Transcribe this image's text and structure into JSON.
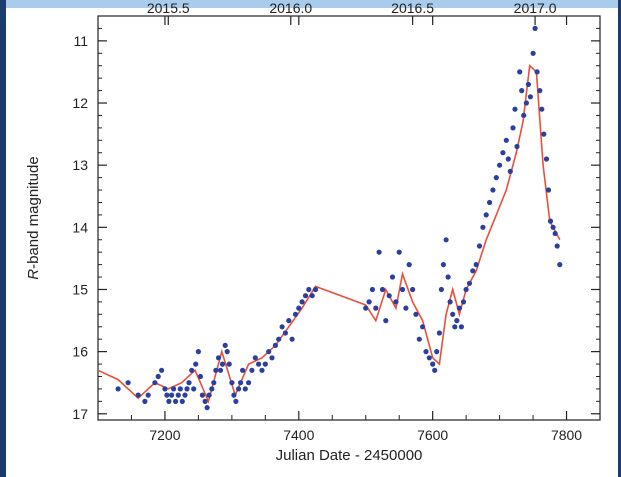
{
  "chart_data": {
    "type": "scatter",
    "title": "",
    "xlabel": "Julian Date - 2450000",
    "ylabel_italic": "R",
    "ylabel_rest": "-band magnitude",
    "xlim": [
      7100,
      7850
    ],
    "ylim": [
      17.1,
      10.6
    ],
    "y_inverted": true,
    "x_ticks": [
      7200,
      7400,
      7600,
      7800
    ],
    "y_ticks": [
      11,
      12,
      13,
      14,
      15,
      16,
      17
    ],
    "x_tick_labels": [
      "7200",
      "7400",
      "7600",
      "7800"
    ],
    "y_tick_labels": [
      "11",
      "12",
      "13",
      "14",
      "15",
      "16",
      "17"
    ],
    "top_axis_ticks": [
      7205,
      7388,
      7570,
      7753
    ],
    "top_axis_labels": [
      "2015.5",
      "2016.0",
      "2016.5",
      "2017.0"
    ],
    "grid": false,
    "legend": "none",
    "series": [
      {
        "style": "points",
        "color": "#2b3f9e",
        "x": [
          7130,
          7145,
          7160,
          7170,
          7175,
          7185,
          7190,
          7195,
          7200,
          7203,
          7206,
          7210,
          7213,
          7216,
          7220,
          7223,
          7226,
          7230,
          7233,
          7236,
          7240,
          7243,
          7246,
          7250,
          7253,
          7256,
          7260,
          7263,
          7266,
          7270,
          7273,
          7276,
          7280,
          7283,
          7286,
          7290,
          7293,
          7296,
          7300,
          7303,
          7306,
          7310,
          7313,
          7316,
          7320,
          7325,
          7330,
          7335,
          7340,
          7345,
          7350,
          7355,
          7360,
          7365,
          7370,
          7375,
          7380,
          7385,
          7390,
          7395,
          7400,
          7405,
          7410,
          7415,
          7420,
          7425,
          7500,
          7505,
          7510,
          7515,
          7520,
          7525,
          7530,
          7535,
          7540,
          7545,
          7550,
          7555,
          7560,
          7565,
          7570,
          7575,
          7580,
          7585,
          7590,
          7595,
          7600,
          7603,
          7606,
          7610,
          7613,
          7616,
          7620,
          7623,
          7626,
          7630,
          7633,
          7636,
          7640,
          7643,
          7646,
          7650,
          7655,
          7660,
          7665,
          7670,
          7675,
          7680,
          7685,
          7690,
          7695,
          7700,
          7705,
          7710,
          7713,
          7716,
          7720,
          7723,
          7726,
          7730,
          7733,
          7736,
          7740,
          7743,
          7746,
          7750,
          7753,
          7756,
          7760,
          7763,
          7766,
          7770,
          7773,
          7776,
          7780,
          7783,
          7786,
          7790
        ],
        "y": [
          16.6,
          16.5,
          16.7,
          16.8,
          16.7,
          16.5,
          16.4,
          16.3,
          16.6,
          16.7,
          16.8,
          16.7,
          16.6,
          16.8,
          16.7,
          16.6,
          16.8,
          16.7,
          16.6,
          16.5,
          16.3,
          16.6,
          16.2,
          16.0,
          16.4,
          16.7,
          16.8,
          16.9,
          16.7,
          16.6,
          16.5,
          16.3,
          16.1,
          16.3,
          16.2,
          15.9,
          16.0,
          16.2,
          16.5,
          16.7,
          16.8,
          16.6,
          16.5,
          16.3,
          16.6,
          16.5,
          16.3,
          16.1,
          16.2,
          16.3,
          16.2,
          16.0,
          16.1,
          15.9,
          15.8,
          15.6,
          15.7,
          15.5,
          15.8,
          15.4,
          15.3,
          15.2,
          15.1,
          15.0,
          15.1,
          15.0,
          15.3,
          15.2,
          15.0,
          15.3,
          14.4,
          15.0,
          15.5,
          15.1,
          14.8,
          15.2,
          14.4,
          15.0,
          15.3,
          14.6,
          15.0,
          15.4,
          15.8,
          15.6,
          16.0,
          16.1,
          16.2,
          16.3,
          16.0,
          15.7,
          15.0,
          14.6,
          14.2,
          14.8,
          15.2,
          15.4,
          15.6,
          15.5,
          15.3,
          15.6,
          15.2,
          15.0,
          14.9,
          14.7,
          14.6,
          14.3,
          14.0,
          13.8,
          13.6,
          13.4,
          13.2,
          13.0,
          12.8,
          12.6,
          12.9,
          13.1,
          12.4,
          12.1,
          12.7,
          11.5,
          11.8,
          12.2,
          12.0,
          11.7,
          11.9,
          11.2,
          10.8,
          11.5,
          11.8,
          12.1,
          12.5,
          12.9,
          13.4,
          13.9,
          14.0,
          14.1,
          14.3,
          14.6
        ]
      },
      {
        "style": "line",
        "color": "#e8503a",
        "x": [
          7100,
          7130,
          7160,
          7185,
          7205,
          7225,
          7245,
          7265,
          7285,
          7305,
          7325,
          7345,
          7365,
          7385,
          7405,
          7425,
          7450,
          7475,
          7500,
          7515,
          7530,
          7545,
          7555,
          7570,
          7585,
          7600,
          7610,
          7620,
          7630,
          7640,
          7650,
          7665,
          7680,
          7695,
          7710,
          7725,
          7735,
          7745,
          7755,
          7765,
          7775,
          7790
        ],
        "y": [
          16.3,
          16.45,
          16.75,
          16.5,
          16.6,
          16.5,
          16.3,
          16.8,
          16.0,
          16.7,
          16.2,
          16.1,
          15.9,
          15.6,
          15.3,
          14.95,
          15.05,
          15.15,
          15.25,
          15.5,
          15.0,
          15.3,
          14.75,
          15.2,
          15.5,
          16.1,
          16.2,
          15.4,
          15.0,
          15.4,
          15.0,
          14.7,
          14.2,
          13.8,
          13.4,
          12.8,
          12.3,
          11.4,
          11.5,
          13.0,
          13.9,
          14.2
        ]
      }
    ]
  }
}
